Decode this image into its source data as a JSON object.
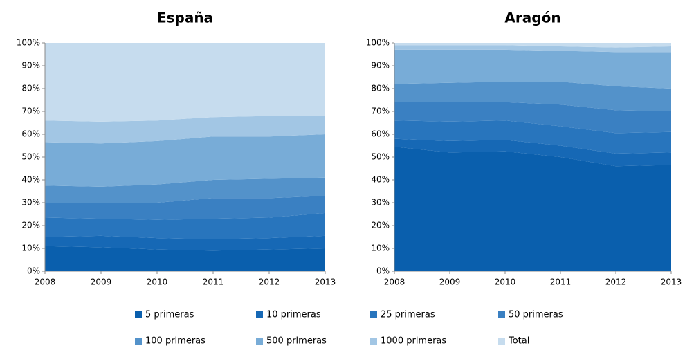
{
  "chart_data": [
    {
      "type": "area",
      "stacked": true,
      "title": "España",
      "categories": [
        "2008",
        "2009",
        "2010",
        "2011",
        "2012",
        "2013"
      ],
      "ylim": [
        0,
        100
      ],
      "yticks": [
        {
          "value": 0,
          "label": "0%"
        },
        {
          "value": 10,
          "label": "10%"
        },
        {
          "value": 20,
          "label": "20%"
        },
        {
          "value": 30,
          "label": "30%"
        },
        {
          "value": 40,
          "label": "40%"
        },
        {
          "value": 50,
          "label": "50%"
        },
        {
          "value": 60,
          "label": "60%"
        },
        {
          "value": 70,
          "label": "70%"
        },
        {
          "value": 80,
          "label": "80%"
        },
        {
          "value": 90,
          "label": "90%"
        },
        {
          "value": 100,
          "label": "100%"
        }
      ],
      "series": [
        {
          "name": "5 primeras",
          "color": "#0a5fad",
          "values": [
            11,
            10.5,
            9.5,
            9,
            9.5,
            10
          ]
        },
        {
          "name": "10 primeras",
          "color": "#1668b5",
          "values": [
            4,
            5,
            5,
            5,
            5,
            5.5
          ]
        },
        {
          "name": "25 primeras",
          "color": "#2875bd",
          "values": [
            8.5,
            7.5,
            8,
            9,
            9,
            10
          ]
        },
        {
          "name": "50 primeras",
          "color": "#3a80c2",
          "values": [
            6.5,
            7,
            7.5,
            9,
            8.5,
            7.5
          ]
        },
        {
          "name": "100 primeras",
          "color": "#5392ca",
          "values": [
            7.5,
            7,
            8,
            8,
            8.5,
            8
          ]
        },
        {
          "name": "500 primeras",
          "color": "#78acd7",
          "values": [
            19,
            19,
            19,
            19,
            18.5,
            19
          ]
        },
        {
          "name": "1000 primeras",
          "color": "#a2c6e4",
          "values": [
            9.5,
            9.5,
            9,
            8.5,
            9,
            8
          ]
        },
        {
          "name": "Total",
          "color": "#c6dcee",
          "values": [
            34,
            34.5,
            34,
            32.5,
            32,
            32
          ]
        }
      ]
    },
    {
      "type": "area",
      "stacked": true,
      "title": "Aragón",
      "categories": [
        "2008",
        "2009",
        "2010",
        "2011",
        "2012",
        "2013"
      ],
      "ylim": [
        0,
        100
      ],
      "yticks": [
        {
          "value": 0,
          "label": "0%"
        },
        {
          "value": 10,
          "label": "10%"
        },
        {
          "value": 20,
          "label": "20%"
        },
        {
          "value": 30,
          "label": "30%"
        },
        {
          "value": 40,
          "label": "40%"
        },
        {
          "value": 50,
          "label": "50%"
        },
        {
          "value": 60,
          "label": "60%"
        },
        {
          "value": 70,
          "label": "70%"
        },
        {
          "value": 80,
          "label": "80%"
        },
        {
          "value": 90,
          "label": "90%"
        },
        {
          "value": 100,
          "label": "100%"
        }
      ],
      "series": [
        {
          "name": "5 primeras",
          "color": "#0a5fad",
          "values": [
            54.5,
            52,
            52.5,
            50,
            46,
            46.5
          ]
        },
        {
          "name": "10 primeras",
          "color": "#1668b5",
          "values": [
            3.5,
            5,
            5,
            5,
            5.5,
            5.5
          ]
        },
        {
          "name": "25 primeras",
          "color": "#2875bd",
          "values": [
            8,
            8.5,
            8.5,
            8.5,
            9,
            9
          ]
        },
        {
          "name": "50 primeras",
          "color": "#3a80c2",
          "values": [
            8,
            8.5,
            8,
            9.5,
            10,
            9
          ]
        },
        {
          "name": "100 primeras",
          "color": "#5392ca",
          "values": [
            8,
            8.5,
            9,
            10,
            10.5,
            10
          ]
        },
        {
          "name": "500 primeras",
          "color": "#78acd7",
          "values": [
            15,
            14.5,
            14,
            13.5,
            15,
            16
          ]
        },
        {
          "name": "1000 primeras",
          "color": "#a2c6e4",
          "values": [
            2,
            2,
            2,
            2,
            2,
            2.5
          ]
        },
        {
          "name": "Total",
          "color": "#c6dcee",
          "values": [
            1,
            1,
            1,
            1.5,
            2,
            1.5
          ]
        }
      ]
    }
  ]
}
